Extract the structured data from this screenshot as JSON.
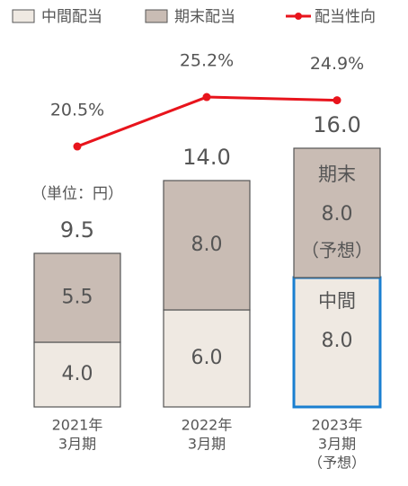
{
  "chart_data": {
    "type": "bar",
    "unit_note": "（単位：円）",
    "categories": [
      [
        "2021年",
        "3月期"
      ],
      [
        "2022年",
        "3月期"
      ],
      [
        "2023年",
        "3月期",
        "（予想）"
      ]
    ],
    "series": [
      {
        "name": "中間配当",
        "color": "#efe9e2",
        "values": [
          4,
          6,
          8
        ],
        "value_labels": [
          "4.0",
          "6.0",
          "8.0"
        ]
      },
      {
        "name": "期末配当",
        "color": "#c9bcb4",
        "values": [
          5.5,
          8,
          8
        ],
        "value_labels": [
          "5.5",
          "8.0",
          "8.0"
        ]
      },
      {
        "name": "配当性向",
        "type": "line",
        "axis": "y2",
        "color": "#e8141c",
        "values": [
          20.5,
          25.2,
          24.9
        ],
        "value_labels": [
          "20.5%",
          "25.2%",
          "24.9%"
        ]
      }
    ],
    "totals": [
      9.5,
      14,
      16
    ],
    "total_labels": [
      "9.5",
      "14.0",
      "16.0"
    ],
    "annotations": {
      "final_label": "期末",
      "final_forecast": "（予想）",
      "interim_label": "中間"
    },
    "highlight_color": "#1a7fd0"
  }
}
